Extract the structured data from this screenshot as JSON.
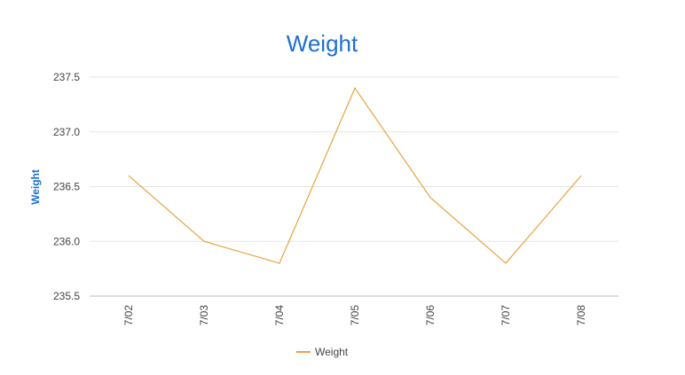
{
  "chart_data": {
    "type": "line",
    "title": "Weight",
    "xlabel": "",
    "ylabel": "Weight",
    "categories": [
      "7/02",
      "7/03",
      "7/04",
      "7/05",
      "7/06",
      "7/07",
      "7/08"
    ],
    "series": [
      {
        "name": "Weight",
        "values": [
          236.6,
          236.0,
          235.8,
          237.4,
          236.4,
          235.8,
          236.6
        ],
        "color": "#e8a33d"
      }
    ],
    "ylim": [
      235.5,
      237.5
    ],
    "yticks": [
      "235.5",
      "236.0",
      "236.5",
      "237.0",
      "237.5"
    ],
    "grid": true,
    "legend": "bottom"
  },
  "colors": {
    "title": "#1f6fd1",
    "gridline": "#e6e6e6",
    "baseline": "#bdbdbd",
    "text": "#444444"
  }
}
